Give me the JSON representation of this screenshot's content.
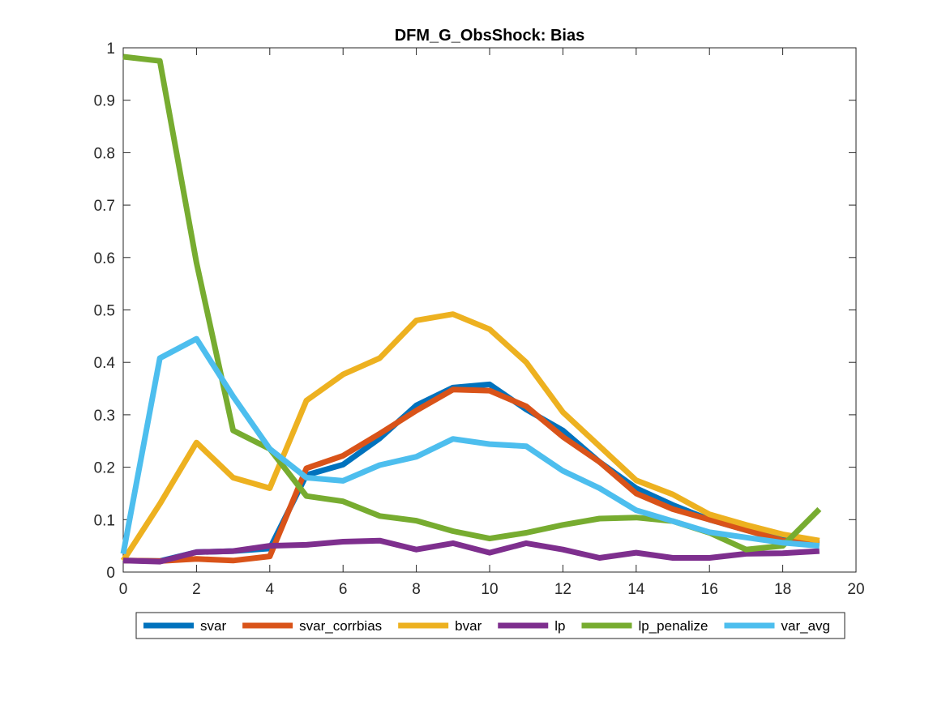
{
  "chart_data": {
    "type": "line",
    "title": "DFM_G_ObsShock: Bias",
    "xlabel": "",
    "ylabel": "",
    "xlim": [
      0,
      20
    ],
    "ylim": [
      0,
      1
    ],
    "xticks": [
      0,
      2,
      4,
      6,
      8,
      10,
      12,
      14,
      16,
      18,
      20
    ],
    "yticks": [
      0,
      0.1,
      0.2,
      0.3,
      0.4,
      0.5,
      0.6,
      0.7,
      0.8,
      0.9,
      1
    ],
    "xtick_labels": [
      "0",
      "2",
      "4",
      "6",
      "8",
      "10",
      "12",
      "14",
      "16",
      "18",
      "20"
    ],
    "ytick_labels": [
      "0",
      "0.1",
      "0.2",
      "0.3",
      "0.4",
      "0.5",
      "0.6",
      "0.7",
      "0.8",
      "0.9",
      "1"
    ],
    "grid": false,
    "legend_placement": "bottom-outside",
    "x": [
      0,
      1,
      2,
      3,
      4,
      5,
      6,
      7,
      8,
      9,
      10,
      11,
      12,
      13,
      14,
      15,
      16,
      17,
      18,
      19
    ],
    "series": [
      {
        "name": "svar",
        "color": "#0072BD",
        "values": [
          0.022,
          0.021,
          0.038,
          0.04,
          0.045,
          0.185,
          0.205,
          0.255,
          0.318,
          0.352,
          0.358,
          0.31,
          0.27,
          0.21,
          0.16,
          0.128,
          0.1,
          0.08,
          0.062,
          0.055
        ]
      },
      {
        "name": "svar_corrbias",
        "color": "#D95319",
        "values": [
          0.022,
          0.021,
          0.025,
          0.022,
          0.03,
          0.198,
          0.222,
          0.264,
          0.308,
          0.348,
          0.346,
          0.316,
          0.258,
          0.21,
          0.15,
          0.12,
          0.1,
          0.08,
          0.06,
          0.055
        ]
      },
      {
        "name": "bvar",
        "color": "#EDB120",
        "values": [
          0.022,
          0.13,
          0.247,
          0.18,
          0.16,
          0.327,
          0.377,
          0.408,
          0.48,
          0.492,
          0.463,
          0.4,
          0.305,
          0.24,
          0.175,
          0.148,
          0.11,
          0.09,
          0.072,
          0.06
        ]
      },
      {
        "name": "lp",
        "color": "#7E2F8E",
        "values": [
          0.022,
          0.02,
          0.038,
          0.04,
          0.05,
          0.052,
          0.058,
          0.06,
          0.043,
          0.055,
          0.037,
          0.055,
          0.043,
          0.027,
          0.037,
          0.027,
          0.027,
          0.035,
          0.036,
          0.04
        ]
      },
      {
        "name": "lp_penalize",
        "color": "#77AC30",
        "values": [
          0.983,
          0.975,
          0.59,
          0.27,
          0.235,
          0.145,
          0.135,
          0.107,
          0.098,
          0.078,
          0.064,
          0.075,
          0.09,
          0.102,
          0.104,
          0.097,
          0.075,
          0.043,
          0.05,
          0.12
        ]
      },
      {
        "name": "var_avg",
        "color": "#4DBEEE",
        "values": [
          0.035,
          0.408,
          0.445,
          0.335,
          0.235,
          0.18,
          0.174,
          0.204,
          0.22,
          0.254,
          0.244,
          0.24,
          0.193,
          0.16,
          0.118,
          0.097,
          0.076,
          0.066,
          0.056,
          0.05
        ]
      }
    ]
  }
}
